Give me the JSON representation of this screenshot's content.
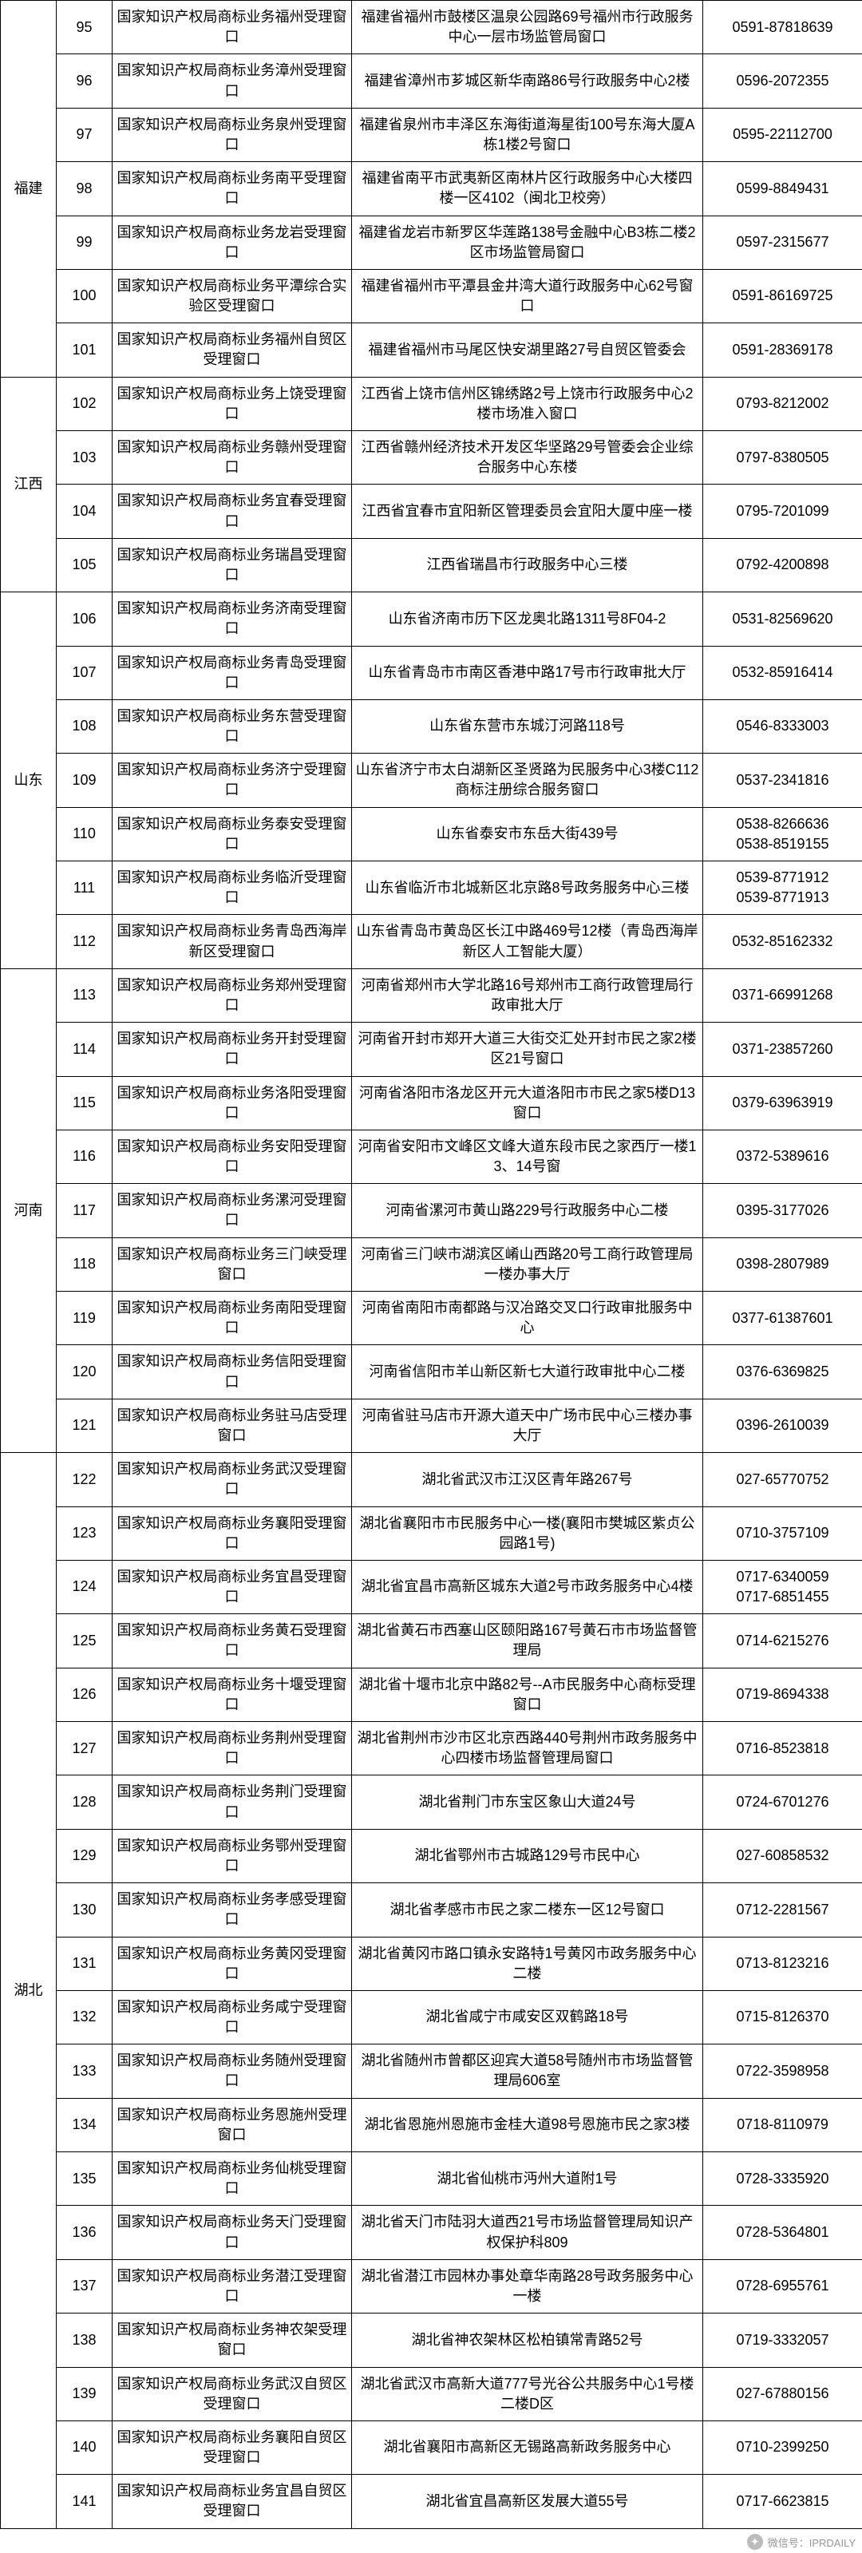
{
  "watermark": {
    "label": "微信号：IPRDAILY"
  },
  "groups": [
    {
      "province": "福建",
      "rows": [
        {
          "num": 95,
          "office": "国家知识产权局商标业务福州受理窗口",
          "address": "福建省福州市鼓楼区温泉公园路69号福州市行政服务中心一层市场监管局窗口",
          "phone": "0591-87818639"
        },
        {
          "num": 96,
          "office": "国家知识产权局商标业务漳州受理窗口",
          "address": "福建省漳州市芗城区新华南路86号行政服务中心2楼",
          "phone": "0596-2072355"
        },
        {
          "num": 97,
          "office": "国家知识产权局商标业务泉州受理窗口",
          "address": "福建省泉州市丰泽区东海街道海星街100号东海大厦A栋1楼2号窗口",
          "phone": "0595-22112700"
        },
        {
          "num": 98,
          "office": "国家知识产权局商标业务南平受理窗口",
          "address": "福建省南平市武夷新区南林片区行政服务中心大楼四楼一区4102（闽北卫校旁）",
          "phone": "0599-8849431"
        },
        {
          "num": 99,
          "office": "国家知识产权局商标业务龙岩受理窗口",
          "address": "福建省龙岩市新罗区华莲路138号金融中心B3栋二楼2区市场监管局窗口",
          "phone": "0597-2315677"
        },
        {
          "num": 100,
          "office": "国家知识产权局商标业务平潭综合实验区受理窗口",
          "address": "福建省福州市平潭县金井湾大道行政服务中心62号窗口",
          "phone": "0591-86169725"
        },
        {
          "num": 101,
          "office": "国家知识产权局商标业务福州自贸区受理窗口",
          "address": "福建省福州市马尾区快安湖里路27号自贸区管委会",
          "phone": "0591-28369178"
        }
      ]
    },
    {
      "province": "江西",
      "rows": [
        {
          "num": 102,
          "office": "国家知识产权局商标业务上饶受理窗口",
          "address": "江西省上饶市信州区锦绣路2号上饶市行政服务中心2楼市场准入窗口",
          "phone": "0793-8212002"
        },
        {
          "num": 103,
          "office": "国家知识产权局商标业务赣州受理窗口",
          "address": "江西省赣州经济技术开发区华坚路29号管委会企业综合服务中心东楼",
          "phone": "0797-8380505"
        },
        {
          "num": 104,
          "office": "国家知识产权局商标业务宜春受理窗口",
          "address": "江西省宜春市宜阳新区管理委员会宜阳大厦中座一楼",
          "phone": "0795-7201099"
        },
        {
          "num": 105,
          "office": "国家知识产权局商标业务瑞昌受理窗口",
          "address": "江西省瑞昌市行政服务中心三楼",
          "phone": "0792-4200898"
        }
      ]
    },
    {
      "province": "山东",
      "rows": [
        {
          "num": 106,
          "office": "国家知识产权局商标业务济南受理窗口",
          "address": "山东省济南市历下区龙奥北路1311号8F04-2",
          "phone": "0531-82569620"
        },
        {
          "num": 107,
          "office": "国家知识产权局商标业务青岛受理窗口",
          "address": "山东省青岛市市南区香港中路17号市行政审批大厅",
          "phone": "0532-85916414"
        },
        {
          "num": 108,
          "office": "国家知识产权局商标业务东营受理窗口",
          "address": "山东省东营市东城汀河路118号",
          "phone": "0546-8333003"
        },
        {
          "num": 109,
          "office": "国家知识产权局商标业务济宁受理窗口",
          "address": "山东省济宁市太白湖新区圣贤路为民服务中心3楼C112商标注册综合服务窗口",
          "phone": "0537-2341816"
        },
        {
          "num": 110,
          "office": "国家知识产权局商标业务泰安受理窗口",
          "address": "山东省泰安市东岳大街439号",
          "phone": "0538-8266636 0538-8519155"
        },
        {
          "num": 111,
          "office": "国家知识产权局商标业务临沂受理窗口",
          "address": "山东省临沂市北城新区北京路8号政务服务中心三楼",
          "phone": "0539-8771912 0539-8771913"
        },
        {
          "num": 112,
          "office": "国家知识产权局商标业务青岛西海岸新区受理窗口",
          "address": "山东省青岛市黄岛区长江中路469号12楼（青岛西海岸新区人工智能大厦）",
          "phone": "0532-85162332"
        }
      ]
    },
    {
      "province": "河南",
      "rows": [
        {
          "num": 113,
          "office": "国家知识产权局商标业务郑州受理窗口",
          "address": "河南省郑州市大学北路16号郑州市工商行政管理局行政审批大厅",
          "phone": "0371-66991268"
        },
        {
          "num": 114,
          "office": "国家知识产权局商标业务开封受理窗口",
          "address": "河南省开封市郑开大道三大街交汇处开封市民之家2楼区21号窗口",
          "phone": "0371-23857260"
        },
        {
          "num": 115,
          "office": "国家知识产权局商标业务洛阳受理窗口",
          "address": "河南省洛阳市洛龙区开元大道洛阳市市民之家5楼D13窗口",
          "phone": "0379-63963919"
        },
        {
          "num": 116,
          "office": "国家知识产权局商标业务安阳受理窗口",
          "address": "河南省安阳市文峰区文峰大道东段市民之家西厅一楼13、14号窗",
          "phone": "0372-5389616"
        },
        {
          "num": 117,
          "office": "国家知识产权局商标业务漯河受理窗口",
          "address": "河南省漯河市黄山路229号行政服务中心二楼",
          "phone": "0395-3177026"
        },
        {
          "num": 118,
          "office": "国家知识产权局商标业务三门峡受理窗口",
          "address": "河南省三门峡市湖滨区崤山西路20号工商行政管理局一楼办事大厅",
          "phone": "0398-2807989"
        },
        {
          "num": 119,
          "office": "国家知识产权局商标业务南阳受理窗口",
          "address": "河南省南阳市南都路与汉冶路交叉口行政审批服务中心",
          "phone": "0377-61387601"
        },
        {
          "num": 120,
          "office": "国家知识产权局商标业务信阳受理窗口",
          "address": "河南省信阳市羊山新区新七大道行政审批中心二楼",
          "phone": "0376-6369825"
        },
        {
          "num": 121,
          "office": "国家知识产权局商标业务驻马店受理窗口",
          "address": "河南省驻马店市开源大道天中广场市民中心三楼办事大厅",
          "phone": "0396-2610039"
        }
      ]
    },
    {
      "province": "湖北",
      "rows": [
        {
          "num": 122,
          "office": "国家知识产权局商标业务武汉受理窗口",
          "address": "湖北省武汉市江汉区青年路267号",
          "phone": "027-65770752"
        },
        {
          "num": 123,
          "office": "国家知识产权局商标业务襄阳受理窗口",
          "address": "湖北省襄阳市市民服务中心一楼(襄阳市樊城区紫贞公园路1号)",
          "phone": "0710-3757109"
        },
        {
          "num": 124,
          "office": "国家知识产权局商标业务宜昌受理窗口",
          "address": "湖北省宜昌市高新区城东大道2号市政务服务中心4楼",
          "phone": "0717-6340059 0717-6851455"
        },
        {
          "num": 125,
          "office": "国家知识产权局商标业务黄石受理窗口",
          "address": "湖北省黄石市西塞山区颐阳路167号黄石市市场监督管理局",
          "phone": "0714-6215276"
        },
        {
          "num": 126,
          "office": "国家知识产权局商标业务十堰受理窗口",
          "address": "湖北省十堰市北京中路82号--A市民服务中心商标受理窗口",
          "phone": "0719-8694338"
        },
        {
          "num": 127,
          "office": "国家知识产权局商标业务荆州受理窗口",
          "address": "湖北省荆州市沙市区北京西路440号荆州市政务服务中心四楼市场监督管理局窗口",
          "phone": "0716-8523818"
        },
        {
          "num": 128,
          "office": "国家知识产权局商标业务荆门受理窗口",
          "address": "湖北省荆门市东宝区象山大道24号",
          "phone": "0724-6701276"
        },
        {
          "num": 129,
          "office": "国家知识产权局商标业务鄂州受理窗口",
          "address": "湖北省鄂州市古城路129号市民中心",
          "phone": "027-60858532"
        },
        {
          "num": 130,
          "office": "国家知识产权局商标业务孝感受理窗口",
          "address": "湖北省孝感市市民之家二楼东一区12号窗口",
          "phone": "0712-2281567"
        },
        {
          "num": 131,
          "office": "国家知识产权局商标业务黄冈受理窗口",
          "address": "湖北省黄冈市路口镇永安路特1号黄冈市政务服务中心二楼",
          "phone": "0713-8123216"
        },
        {
          "num": 132,
          "office": "国家知识产权局商标业务咸宁受理窗口",
          "address": "湖北省咸宁市咸安区双鹤路18号",
          "phone": "0715-8126370"
        },
        {
          "num": 133,
          "office": "国家知识产权局商标业务随州受理窗口",
          "address": "湖北省随州市曾都区迎宾大道58号随州市市场监督管理局606室",
          "phone": "0722-3598958"
        },
        {
          "num": 134,
          "office": "国家知识产权局商标业务恩施州受理窗口",
          "address": "湖北省恩施州恩施市金桂大道98号恩施市民之家3楼",
          "phone": "0718-8110979"
        },
        {
          "num": 135,
          "office": "国家知识产权局商标业务仙桃受理窗口",
          "address": "湖北省仙桃市沔州大道附1号",
          "phone": "0728-3335920"
        },
        {
          "num": 136,
          "office": "国家知识产权局商标业务天门受理窗口",
          "address": "湖北省天门市陆羽大道西21号市场监督管理局知识产权保护科809",
          "phone": "0728-5364801"
        },
        {
          "num": 137,
          "office": "国家知识产权局商标业务潜江受理窗口",
          "address": "湖北省潜江市园林办事处章华南路28号政务服务中心一楼",
          "phone": "0728-6955761"
        },
        {
          "num": 138,
          "office": "国家知识产权局商标业务神农架受理窗口",
          "address": "湖北省神农架林区松柏镇常青路52号",
          "phone": "0719-3332057"
        },
        {
          "num": 139,
          "office": "国家知识产权局商标业务武汉自贸区受理窗口",
          "address": "湖北省武汉市高新大道777号光谷公共服务中心1号楼二楼D区",
          "phone": "027-67880156"
        },
        {
          "num": 140,
          "office": "国家知识产权局商标业务襄阳自贸区受理窗口",
          "address": "湖北省襄阳市高新区无锡路高新政务服务中心",
          "phone": "0710-2399250"
        },
        {
          "num": 141,
          "office": "国家知识产权局商标业务宜昌自贸区受理窗口",
          "address": "湖北省宜昌高新区发展大道55号",
          "phone": "0717-6623815"
        }
      ]
    }
  ]
}
